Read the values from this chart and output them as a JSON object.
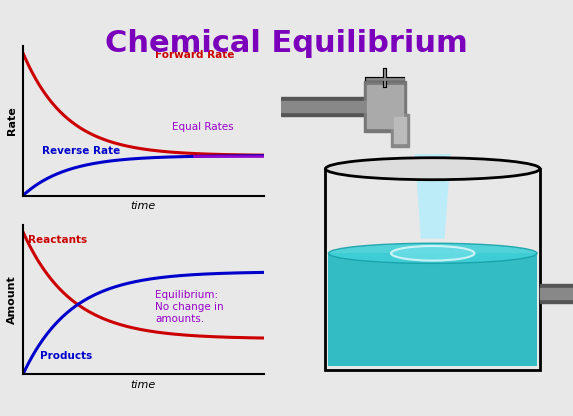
{
  "title": "Chemical Equilibrium",
  "title_color": "#7B00BB",
  "title_fontsize": 22,
  "bg_color": "#E8E8E8",
  "graph1": {
    "ylabel": "Rate",
    "xlabel": "time",
    "forward_label": "Forward Rate",
    "reverse_label": "Reverse Rate",
    "equal_label": "Equal Rates",
    "forward_color": "#CC0000",
    "reverse_color": "#0000CC",
    "equal_color": "#9900CC"
  },
  "graph2": {
    "ylabel": "Amount",
    "xlabel": "time",
    "reactants_label": "Reactants",
    "products_label": "Products",
    "equil_label": "Equilibrium:\nNo change in\namounts.",
    "reactants_color": "#CC0000",
    "products_color": "#0000CC",
    "equil_color": "#9900CC"
  }
}
